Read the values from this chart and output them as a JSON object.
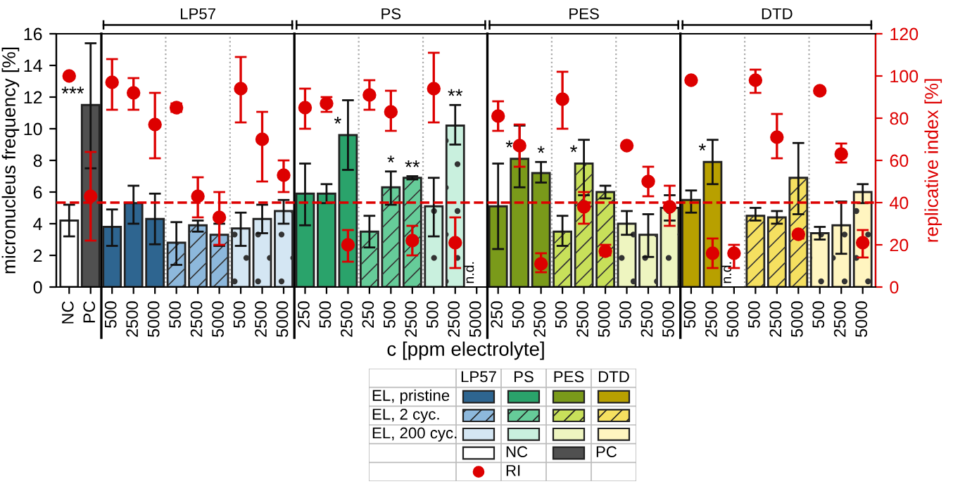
{
  "chart_data": {
    "type": "bar",
    "xlabel": "c [ppm electrolyte]",
    "ylabel": "micronucleus frequency [%]",
    "y2label": "replicative index [%]",
    "categories": [
      "NC",
      "PC",
      "500",
      "2500",
      "5000",
      "500",
      "2500",
      "5000",
      "500",
      "2500",
      "5000",
      "250",
      "500",
      "2500",
      "250",
      "500",
      "2500",
      "500",
      "2500",
      "5000",
      "250",
      "500",
      "2500",
      "500",
      "2500",
      "5000",
      "500",
      "2500",
      "5000",
      "500",
      "2500",
      "5000",
      "500",
      "2500",
      "5000",
      "500",
      "2500",
      "5000"
    ],
    "series": [
      {
        "colors": [
          "#ffffff",
          "#505050",
          "#2e6590",
          "#2e6590",
          "#2e6590",
          "#8db8dc",
          "#8db8dc",
          "#8db8dc",
          "#d4e6f3",
          "#d4e6f3",
          "#d4e6f3",
          "#2aa36b",
          "#2aa36b",
          "#2aa36b",
          "#66cc99",
          "#66cc99",
          "#66cc99",
          "#c9f0de",
          "#c9f0de",
          "#c9f0de",
          "#7a9a1a",
          "#7a9a1a",
          "#7a9a1a",
          "#c8e05a",
          "#c8e05a",
          "#c8e05a",
          "#eef5c0",
          "#eef5c0",
          "#eef5c0",
          "#b8a000",
          "#b8a000",
          "#b8a000",
          "#f5e060",
          "#f5e060",
          "#f5e060",
          "#fff5c0",
          "#fff5c0",
          "#fff5c0"
        ],
        "values": [
          4.2,
          11.5,
          3.8,
          5.3,
          4.3,
          2.8,
          3.9,
          3.3,
          3.7,
          4.3,
          4.8,
          5.9,
          5.9,
          9.6,
          3.5,
          6.3,
          6.9,
          5.1,
          10.2,
          null,
          5.1,
          8.1,
          7.2,
          3.5,
          7.8,
          6.0,
          4.0,
          3.3,
          5.0,
          5.5,
          7.9,
          null,
          4.5,
          4.4,
          6.9,
          3.4,
          3.9,
          6.0
        ],
        "errors": [
          [
            3.2,
            5.2
          ],
          [
            7.5,
            15.4
          ],
          [
            2.6,
            4.9
          ],
          [
            4.0,
            6.4
          ],
          [
            2.7,
            5.9
          ],
          [
            1.4,
            4.1
          ],
          [
            3.5,
            4.2
          ],
          [
            2.6,
            4.0
          ],
          [
            2.6,
            4.7
          ],
          [
            3.4,
            5.2
          ],
          [
            4.0,
            5.5
          ],
          [
            3.9,
            7.8
          ],
          [
            5.3,
            6.5
          ],
          [
            7.4,
            11.8
          ],
          [
            2.5,
            4.5
          ],
          [
            5.2,
            7.3
          ],
          [
            6.8,
            7.0
          ],
          [
            3.2,
            6.9
          ],
          [
            9.0,
            11.5
          ],
          null,
          [
            2.4,
            7.8
          ],
          [
            6.3,
            10.2
          ],
          [
            6.6,
            7.9
          ],
          [
            2.6,
            4.5
          ],
          [
            5.8,
            9.3
          ],
          [
            5.6,
            6.4
          ],
          [
            3.3,
            4.8
          ],
          [
            1.9,
            4.6
          ],
          [
            4.2,
            5.8
          ],
          [
            4.7,
            6.1
          ],
          [
            6.5,
            9.3
          ],
          null,
          [
            4.2,
            5.0
          ],
          [
            4.0,
            4.8
          ],
          [
            4.6,
            9.1
          ],
          [
            3.0,
            3.8
          ],
          [
            2.1,
            5.4
          ],
          [
            5.3,
            6.5
          ]
        ],
        "value_labels": [
          null,
          "***",
          null,
          null,
          null,
          null,
          null,
          null,
          null,
          null,
          null,
          null,
          null,
          "*",
          null,
          "*",
          "**",
          null,
          "**",
          "n.d.",
          null,
          "*",
          "*",
          null,
          "*",
          null,
          null,
          null,
          null,
          null,
          "*",
          "n.d.",
          null,
          null,
          null,
          null,
          null,
          null
        ]
      },
      {
        "type": "scatter",
        "name": "RI",
        "axis": "y2",
        "color": "#dd0000",
        "values": [
          100,
          43,
          97,
          92,
          77,
          85,
          43,
          33,
          94,
          70,
          53,
          85,
          87,
          20,
          91,
          83,
          22,
          94,
          21,
          null,
          81,
          67,
          11,
          89,
          38,
          17,
          67,
          50,
          38,
          98,
          16,
          16,
          98,
          71,
          25,
          93,
          63,
          21
        ],
        "errors": [
          null,
          [
            22,
            64
          ],
          [
            84,
            108
          ],
          [
            84,
            99
          ],
          [
            61,
            92
          ],
          [
            83,
            87
          ],
          [
            33,
            52
          ],
          [
            20,
            45
          ],
          [
            78,
            109
          ],
          [
            50,
            83
          ],
          [
            45,
            60
          ],
          [
            75,
            94
          ],
          [
            83,
            90
          ],
          [
            12,
            27
          ],
          [
            84,
            98
          ],
          [
            74,
            93
          ],
          [
            15,
            29
          ],
          [
            78,
            111
          ],
          [
            9,
            33
          ],
          null,
          [
            74,
            88
          ],
          [
            57,
            77
          ],
          [
            7,
            16
          ],
          [
            75,
            102
          ],
          [
            30,
            45
          ],
          [
            15,
            20
          ],
          null,
          [
            43,
            57
          ],
          [
            29,
            48
          ],
          null,
          [
            9,
            23
          ],
          [
            9,
            20
          ],
          [
            92,
            103
          ],
          [
            61,
            82
          ],
          [
            23,
            26
          ],
          [
            92,
            94
          ],
          [
            59,
            68
          ],
          [
            14,
            27
          ]
        ]
      }
    ],
    "ylim": [
      0,
      16
    ],
    "yticks": [
      0,
      2,
      4,
      6,
      8,
      10,
      12,
      14,
      16
    ],
    "y2lim": [
      0,
      120
    ],
    "y2ticks": [
      0,
      20,
      40,
      60,
      80,
      100,
      120
    ],
    "ref_lines": [
      {
        "axis": "y2",
        "value": 40,
        "color": "#dd0000",
        "line_style": "dashed"
      }
    ],
    "marker": "circle",
    "grid": false,
    "legend": "bottom",
    "annotations": [
      "LP57",
      "PS",
      "PES",
      "DTD",
      "LP57",
      "PS",
      "PES",
      "DTD",
      "EL, pristine",
      "EL, 2 cyc.",
      "EL, 200 cyc.",
      "NC",
      "PC"
    ]
  }
}
